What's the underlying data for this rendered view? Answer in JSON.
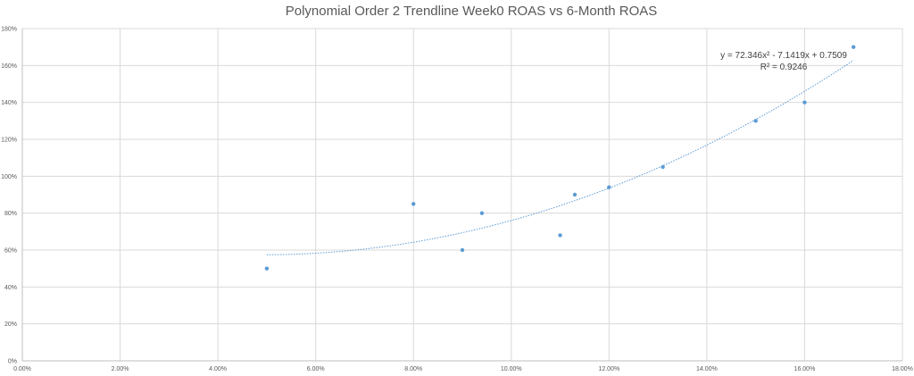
{
  "chart_data": {
    "type": "scatter",
    "title": "Polynomial Order 2 Trendline Week0 ROAS vs 6-Month ROAS",
    "xlim": [
      0,
      0.18
    ],
    "ylim": [
      0,
      1.8
    ],
    "x_ticks": [
      "0.00%",
      "2.00%",
      "4.00%",
      "6.00%",
      "8.00%",
      "10.00%",
      "12.00%",
      "14.00%",
      "16.00%",
      "18.00%"
    ],
    "y_ticks": [
      "0%",
      "20%",
      "40%",
      "60%",
      "80%",
      "100%",
      "120%",
      "140%",
      "160%",
      "180%"
    ],
    "grid": true,
    "series": [
      {
        "color": "#5b9bd5",
        "points": [
          {
            "x": 0.05,
            "y": 0.5
          },
          {
            "x": 0.08,
            "y": 0.85
          },
          {
            "x": 0.09,
            "y": 0.6
          },
          {
            "x": 0.094,
            "y": 0.8
          },
          {
            "x": 0.11,
            "y": 0.68
          },
          {
            "x": 0.113,
            "y": 0.9
          },
          {
            "x": 0.12,
            "y": 0.94
          },
          {
            "x": 0.131,
            "y": 1.05
          },
          {
            "x": 0.15,
            "y": 1.3
          },
          {
            "x": 0.16,
            "y": 1.4
          },
          {
            "x": 0.17,
            "y": 1.7
          }
        ]
      }
    ],
    "trendline": {
      "type": "polynomial",
      "order": 2,
      "coefficients": [
        72.346,
        -7.1419,
        0.7509
      ],
      "x_range": [
        0.05,
        0.17
      ],
      "color": "#5b9bd5",
      "equation_label": "y = 72.346x² - 7.1419x + 0.7509",
      "r2_label": "R² = 0.9246"
    }
  }
}
